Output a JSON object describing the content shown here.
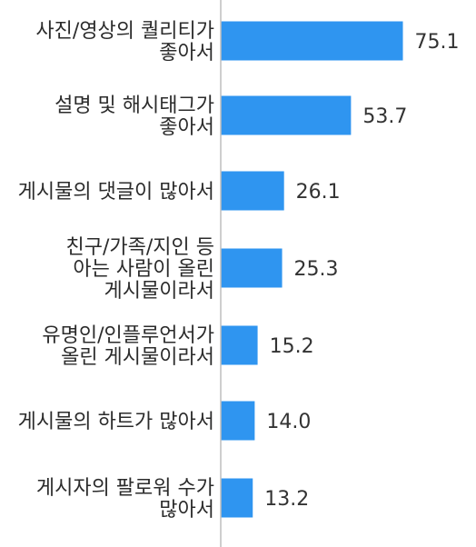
{
  "chart_data": {
    "type": "bar",
    "orientation": "horizontal",
    "title": "",
    "xlabel": "",
    "ylabel": "",
    "categories": [
      [
        "사진/영상의 퀄리티가",
        "좋아서"
      ],
      [
        "설명 및 해시태그가",
        "좋아서"
      ],
      [
        "게시물의 댓글이 많아서"
      ],
      [
        "친구/가족/지인 등",
        "아는 사람이 올린",
        "게시물이라서"
      ],
      [
        "유명인/인플루언서가",
        "올린 게시물이라서"
      ],
      [
        "게시물의 하트가 많아서"
      ],
      [
        "게시자의 팔로워 수가",
        "많아서"
      ]
    ],
    "values": [
      75.1,
      53.7,
      26.1,
      25.3,
      15.2,
      14.0,
      13.2
    ],
    "value_labels": [
      "75.1",
      "53.7",
      "26.1",
      "25.3",
      "15.2",
      "14.0",
      "13.2"
    ],
    "xlim": [
      0,
      100
    ],
    "grid": false,
    "legend": "none",
    "colors": {
      "bar": "#2f95f0",
      "axis": "#bdbdbd",
      "label_text": "#2b2b2b",
      "value_text": "#333333"
    }
  }
}
